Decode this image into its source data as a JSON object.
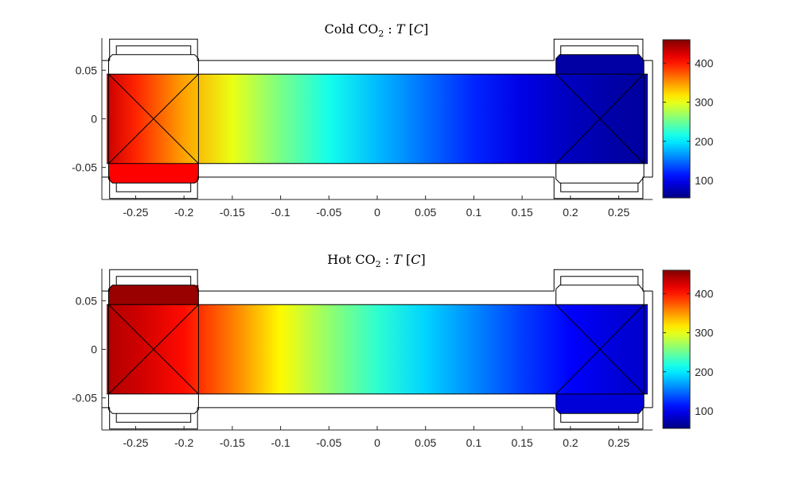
{
  "chart_data": [
    {
      "type": "heatmap",
      "title": {
        "prefix": "Cold CO",
        "sub": "2",
        "sep": " : ",
        "var": "T",
        "unit_open": " [",
        "unit": "C",
        "unit_close": "]"
      },
      "xlim": [
        -0.285,
        0.285
      ],
      "ylim": [
        -0.083,
        0.083
      ],
      "xticks": [
        -0.25,
        -0.2,
        -0.15,
        -0.1,
        -0.05,
        0,
        0.05,
        0.1,
        0.15,
        0.2,
        0.25
      ],
      "xtick_labels": [
        "-0.25",
        "-0.2",
        "-0.15",
        "-0.1",
        "-0.05",
        "0",
        "0.05",
        "0.1",
        "0.15",
        "0.2",
        "0.25"
      ],
      "yticks": [
        0.05,
        0,
        -0.05
      ],
      "ytick_labels": [
        "0.05",
        "0",
        "-0.05"
      ],
      "colormap": "jet",
      "clim": [
        55,
        460
      ],
      "colorbar_ticks": [
        400,
        300,
        200,
        100
      ],
      "colorbar_labels": [
        "400",
        "300",
        "200",
        "100"
      ],
      "temperature_profile_x": [
        -0.28,
        -0.25,
        -0.2,
        -0.15,
        -0.1,
        -0.05,
        0,
        0.05,
        0.1,
        0.15,
        0.2,
        0.25,
        0.28
      ],
      "temperature_profile_T": [
        430,
        395,
        345,
        300,
        255,
        215,
        180,
        150,
        120,
        95,
        80,
        70,
        68
      ],
      "left_block_T": 420,
      "right_block_T": 70
    },
    {
      "type": "heatmap",
      "title": {
        "prefix": "Hot CO",
        "sub": "2",
        "sep": " : ",
        "var": "T",
        "unit_open": " [",
        "unit": "C",
        "unit_close": "]"
      },
      "xlim": [
        -0.285,
        0.285
      ],
      "ylim": [
        -0.083,
        0.083
      ],
      "xticks": [
        -0.25,
        -0.2,
        -0.15,
        -0.1,
        -0.05,
        0,
        0.05,
        0.1,
        0.15,
        0.2,
        0.25
      ],
      "xtick_labels": [
        "-0.25",
        "-0.2",
        "-0.15",
        "-0.1",
        "-0.05",
        "0",
        "0.05",
        "0.1",
        "0.15",
        "0.2",
        "0.25"
      ],
      "yticks": [
        0.05,
        0,
        -0.05
      ],
      "ytick_labels": [
        "0.05",
        "0",
        "-0.05"
      ],
      "colormap": "jet",
      "clim": [
        55,
        460
      ],
      "colorbar_ticks": [
        400,
        300,
        200,
        100
      ],
      "colorbar_labels": [
        "400",
        "300",
        "200",
        "100"
      ],
      "temperature_profile_x": [
        -0.28,
        -0.25,
        -0.2,
        -0.15,
        -0.1,
        -0.05,
        0,
        0.05,
        0.1,
        0.15,
        0.2,
        0.25,
        0.28
      ],
      "temperature_profile_T": [
        440,
        430,
        405,
        360,
        310,
        265,
        225,
        190,
        160,
        130,
        105,
        90,
        85
      ],
      "left_block_T": 450,
      "right_block_T": 90
    }
  ]
}
